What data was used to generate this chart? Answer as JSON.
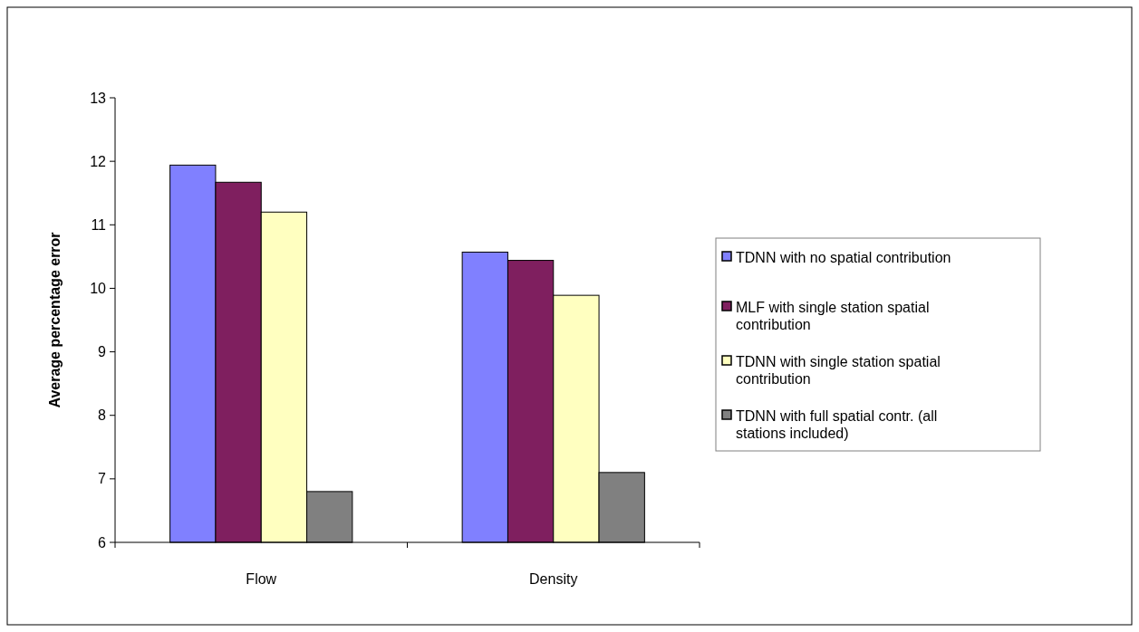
{
  "chart_data": {
    "type": "bar",
    "ylabel": "Average percentage error",
    "categories": [
      "Flow",
      "Density"
    ],
    "series": [
      {
        "name": "TDNN with no spatial contribution",
        "color": "#8080ff",
        "values": [
          11.94,
          10.57
        ]
      },
      {
        "name": "MLF with single station spatial contribution",
        "color": "#7f1f5f",
        "values": [
          11.67,
          10.44
        ]
      },
      {
        "name": "TDNN with single station spatial contribution",
        "color": "#ffffc0",
        "values": [
          11.2,
          9.89
        ]
      },
      {
        "name": "TDNN with full spatial contr. (all stations included)",
        "color": "#808080",
        "values": [
          6.8,
          7.1
        ]
      }
    ],
    "ylim": [
      6,
      13
    ],
    "yticks": [
      6,
      7,
      8,
      9,
      10,
      11,
      12,
      13
    ],
    "grid": false,
    "legend": "right"
  }
}
